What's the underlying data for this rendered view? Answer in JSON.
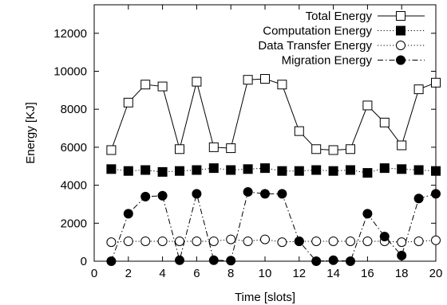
{
  "chart_data": {
    "type": "line",
    "xlabel": "Time [slots]",
    "ylabel": "Energy [KJ]",
    "xlim": [
      0,
      20
    ],
    "ylim": [
      0,
      13500
    ],
    "xticks": [
      0,
      2,
      4,
      6,
      8,
      10,
      12,
      14,
      16,
      18,
      20
    ],
    "yticks": [
      0,
      2000,
      4000,
      6000,
      8000,
      10000,
      12000
    ],
    "grid": false,
    "legend_position": "top-right",
    "x": [
      1,
      2,
      3,
      4,
      5,
      6,
      7,
      8,
      9,
      10,
      11,
      12,
      13,
      14,
      15,
      16,
      17,
      18,
      19,
      20
    ],
    "series": [
      {
        "name": "Total Energy",
        "line_style": "solid",
        "marker": "open-square",
        "values": [
          5850,
          8350,
          9300,
          9200,
          5900,
          9450,
          6000,
          5950,
          9550,
          9600,
          9300,
          6850,
          5900,
          5850,
          5900,
          8200,
          7300,
          6100,
          9050,
          9400
        ]
      },
      {
        "name": "Computation Energy",
        "line_style": "dotted",
        "marker": "filled-square",
        "values": [
          4850,
          4750,
          4800,
          4700,
          4750,
          4800,
          4900,
          4800,
          4850,
          4900,
          4750,
          4750,
          4800,
          4750,
          4800,
          4650,
          4900,
          4850,
          4800,
          4750
        ]
      },
      {
        "name": "Data Transfer Energy",
        "line_style": "dotted",
        "marker": "open-circle",
        "values": [
          1000,
          1050,
          1050,
          1050,
          1050,
          1050,
          1050,
          1150,
          1050,
          1150,
          1000,
          1050,
          1050,
          1050,
          1050,
          1050,
          1050,
          1000,
          1050,
          1100
        ]
      },
      {
        "name": "Migration Energy",
        "line_style": "dash-dot",
        "marker": "filled-circle",
        "values": [
          0,
          2500,
          3400,
          3450,
          50,
          3550,
          50,
          30,
          3650,
          3550,
          3550,
          1050,
          0,
          50,
          0,
          2500,
          1300,
          300,
          3300,
          3550
        ]
      }
    ]
  }
}
